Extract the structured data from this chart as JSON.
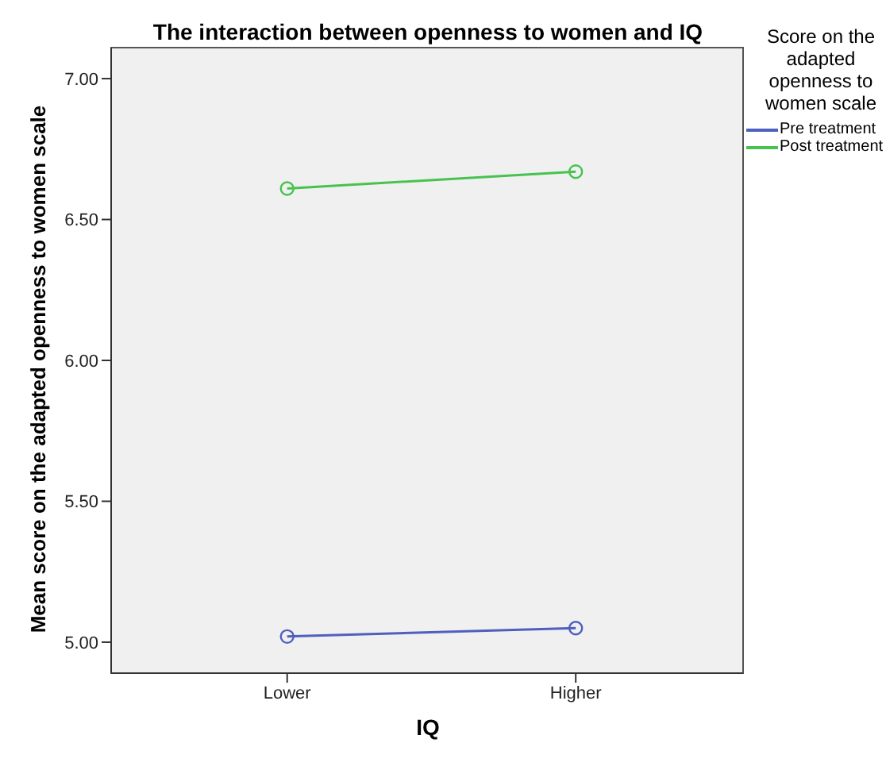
{
  "chart_data": {
    "type": "line",
    "title": "The interaction between openness to women and IQ",
    "xlabel": "IQ",
    "ylabel": "Mean score on the adapted openness to women scale",
    "legend_title": "Score on the adapted openness to women scale",
    "categories": [
      "Lower",
      "Higher"
    ],
    "series": [
      {
        "name": "Pre treatment",
        "color": "#4f5fbf",
        "values": [
          5.02,
          5.05
        ]
      },
      {
        "name": "Post treatment",
        "color": "#47c24f",
        "values": [
          6.61,
          6.67
        ]
      }
    ],
    "ylim": [
      4.89,
      7.11
    ],
    "yticks": [
      {
        "value": 5,
        "label": "5.00"
      },
      {
        "value": 5.5,
        "label": "5.50"
      },
      {
        "value": 6,
        "label": "6.00"
      },
      {
        "value": 6.5,
        "label": "6.50"
      },
      {
        "value": 7,
        "label": "7.00"
      }
    ],
    "legend": "top right",
    "marker": "circle",
    "line_style": "solid"
  }
}
